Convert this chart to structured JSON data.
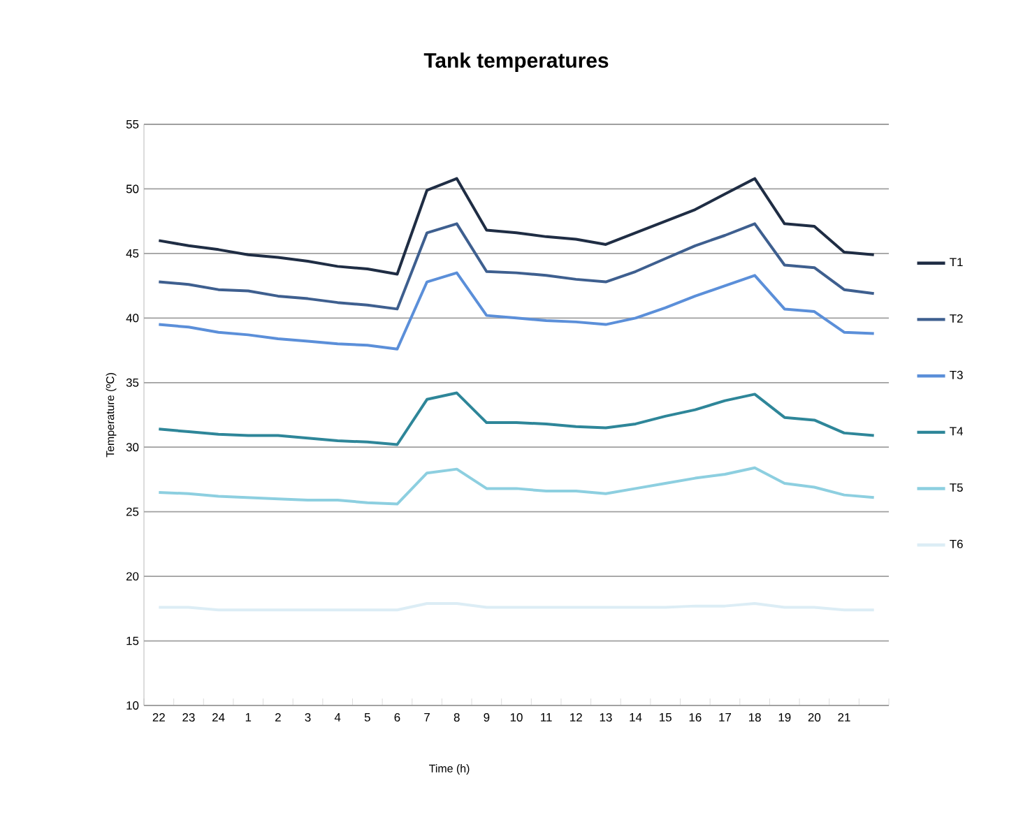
{
  "chart_data": {
    "type": "line",
    "title": "Tank temperatures",
    "xlabel": "Time (h)",
    "ylabel": "Temperature (ºC)",
    "categories": [
      "22",
      "23",
      "24",
      "1",
      "2",
      "3",
      "4",
      "5",
      "6",
      "7",
      "8",
      "9",
      "10",
      "11",
      "12",
      "13",
      "14",
      "15",
      "16",
      "17",
      "18",
      "19",
      "20",
      "21",
      null
    ],
    "ylim": [
      10,
      55
    ],
    "yticks": [
      10,
      15,
      20,
      25,
      30,
      35,
      40,
      45,
      50,
      55
    ],
    "grid": "y",
    "legend": "right",
    "marker": "none",
    "line_style": "solid",
    "series": [
      {
        "name": "T1",
        "color": "#1f2d44",
        "values": [
          46.0,
          45.6,
          45.3,
          44.9,
          44.7,
          44.4,
          44.0,
          43.8,
          43.4,
          49.9,
          50.8,
          46.8,
          46.6,
          46.3,
          46.1,
          45.7,
          46.6,
          47.5,
          48.4,
          49.6,
          50.8,
          47.3,
          47.1,
          45.1,
          44.9
        ]
      },
      {
        "name": "T2",
        "color": "#3e5f8f",
        "values": [
          42.8,
          42.6,
          42.2,
          42.1,
          41.7,
          41.5,
          41.2,
          41.0,
          40.7,
          46.6,
          47.3,
          43.6,
          43.5,
          43.3,
          43.0,
          42.8,
          43.6,
          44.6,
          45.6,
          46.4,
          47.3,
          44.1,
          43.9,
          42.2,
          41.9
        ]
      },
      {
        "name": "T3",
        "color": "#5b8fd9",
        "values": [
          39.5,
          39.3,
          38.9,
          38.7,
          38.4,
          38.2,
          38.0,
          37.9,
          37.6,
          42.8,
          43.5,
          40.2,
          40.0,
          39.8,
          39.7,
          39.5,
          40.0,
          40.8,
          41.7,
          42.5,
          43.3,
          40.7,
          40.5,
          38.9,
          38.8
        ]
      },
      {
        "name": "T4",
        "color": "#2e8699",
        "values": [
          31.4,
          31.2,
          31.0,
          30.9,
          30.9,
          30.7,
          30.5,
          30.4,
          30.2,
          33.7,
          34.2,
          31.9,
          31.9,
          31.8,
          31.6,
          31.5,
          31.8,
          32.4,
          32.9,
          33.6,
          34.1,
          32.3,
          32.1,
          31.1,
          30.9
        ]
      },
      {
        "name": "T5",
        "color": "#8dcfe0",
        "values": [
          26.5,
          26.4,
          26.2,
          26.1,
          26.0,
          25.9,
          25.9,
          25.7,
          25.6,
          28.0,
          28.3,
          26.8,
          26.8,
          26.6,
          26.6,
          26.4,
          26.8,
          27.2,
          27.6,
          27.9,
          28.4,
          27.2,
          26.9,
          26.3,
          26.1
        ]
      },
      {
        "name": "T6",
        "color": "#dcedf5",
        "values": [
          17.6,
          17.6,
          17.4,
          17.4,
          17.4,
          17.4,
          17.4,
          17.4,
          17.4,
          17.9,
          17.9,
          17.6,
          17.6,
          17.6,
          17.6,
          17.6,
          17.6,
          17.6,
          17.7,
          17.7,
          17.9,
          17.6,
          17.6,
          17.4,
          17.4
        ]
      }
    ]
  }
}
